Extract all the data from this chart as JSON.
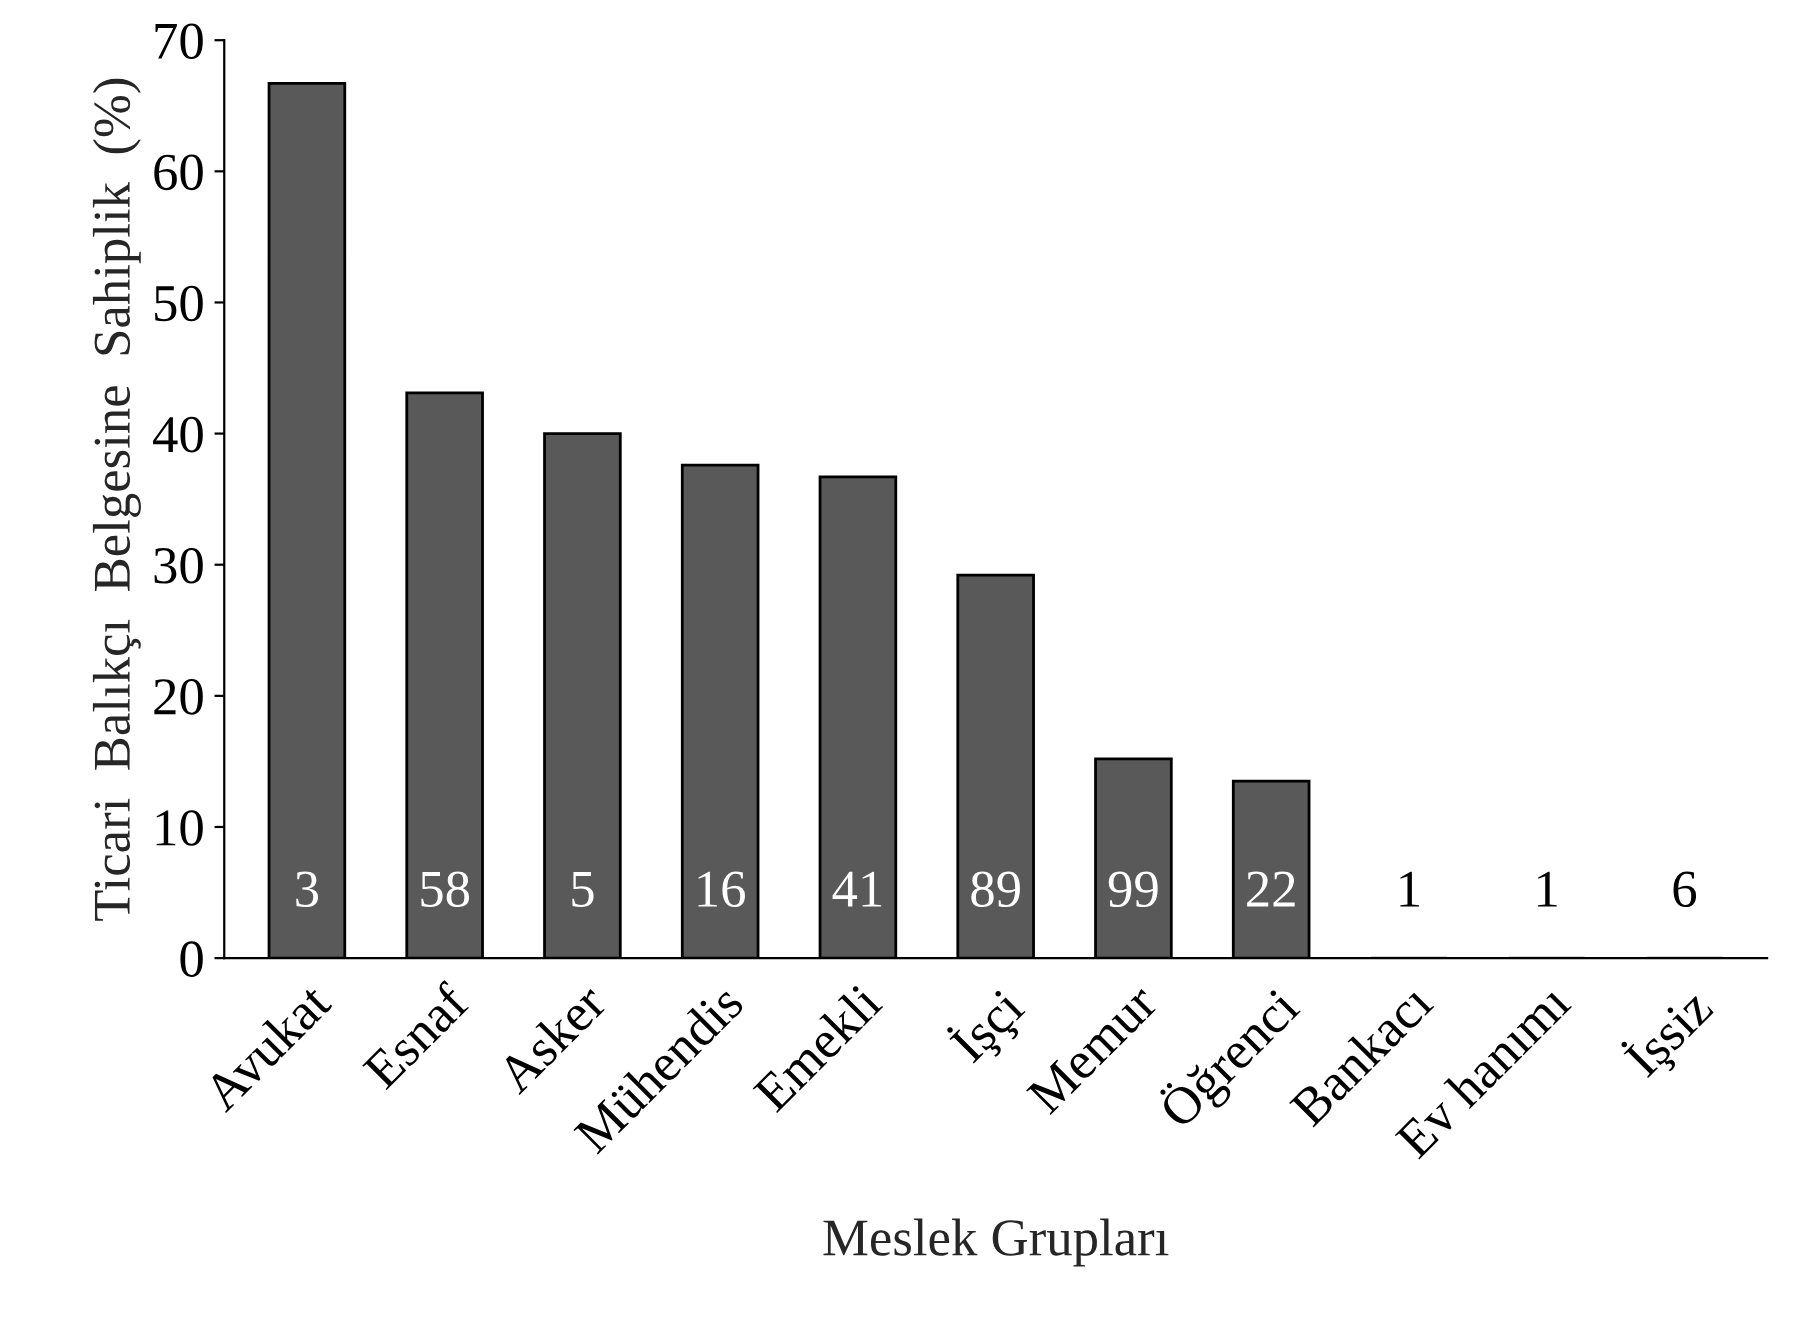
{
  "chart_data": {
    "type": "bar",
    "xlabel": "Meslek Grupları",
    "ylabel": "Ticari  Balıkçı  Belgesine  Sahiplik  (%)",
    "categories": [
      "Avukat",
      "Esnaf",
      "Asker",
      "Mühendis",
      "Emekli",
      "İşçi",
      "Memur",
      "Öğrenci",
      "Bankacı",
      "Ev hanımı",
      "İşsiz"
    ],
    "values": [
      66.7,
      43.1,
      40.0,
      37.6,
      36.7,
      29.2,
      15.2,
      13.5,
      0,
      0,
      0
    ],
    "color": "#595959",
    "ylim": [
      0,
      70
    ],
    "yticks": [
      0,
      10,
      20,
      30,
      40,
      50,
      60,
      70
    ],
    "grid": false,
    "annotations": [
      "3",
      "58",
      "5",
      "16",
      "41",
      "89",
      "99",
      "22",
      "1",
      "1",
      "6"
    ]
  }
}
